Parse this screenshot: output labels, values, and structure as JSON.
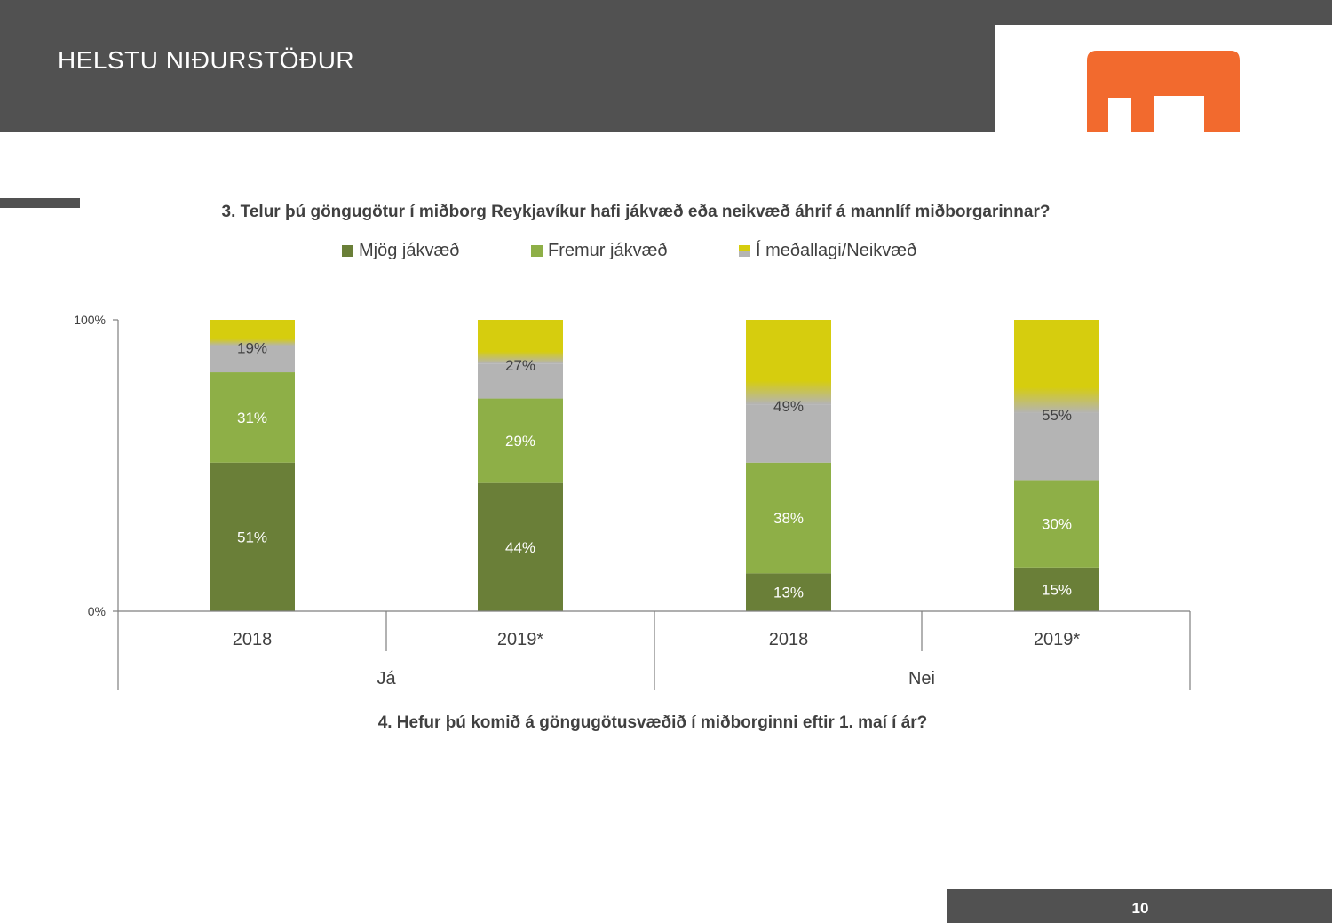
{
  "header": {
    "title": "HELSTU NIÐURSTÖÐUR"
  },
  "colors": {
    "header_bg": "#515151",
    "logo_orange": "#F26A2E",
    "mjog": "#6A7F38",
    "fremur": "#8EAF47",
    "midlungs": "#B4B4B4",
    "neikvaed": "#D6CD0E",
    "axis": "#7F7F7F",
    "text": "#404040"
  },
  "chart_data": {
    "type": "bar",
    "stacked": true,
    "title": "3. Telur þú göngugötur í miðborg Reykjavíkur hafi jákvæð eða neikvæð áhrif á mannlíf miðborgarinnar?",
    "legend": [
      "Mjög jákvæð",
      "Fremur jákvæð",
      "Í meðallagi/Neikvæð"
    ],
    "legend_position": "top",
    "categories": [
      "2018",
      "2019*",
      "2018",
      "2019*"
    ],
    "groups": [
      {
        "label": "Já",
        "categories": [
          "2018",
          "2019*"
        ]
      },
      {
        "label": "Nei",
        "categories": [
          "2018",
          "2019*"
        ]
      }
    ],
    "series": [
      {
        "name": "Mjög jákvæð",
        "values": [
          51,
          44,
          13,
          15
        ],
        "labels": [
          "51%",
          "44%",
          "13%",
          "15%"
        ]
      },
      {
        "name": "Fremur jákvæð",
        "values": [
          31,
          29,
          38,
          30
        ],
        "labels": [
          "31%",
          "29%",
          "38%",
          "30%"
        ]
      },
      {
        "name": "Í meðallagi",
        "values": [
          9,
          12,
          20,
          23
        ]
      },
      {
        "name": "Neikvæð",
        "values": [
          9,
          15,
          29,
          32
        ]
      }
    ],
    "combined_labels": [
      "19%",
      "27%",
      "49%",
      "55%"
    ],
    "yticks": [
      "0%",
      "100%"
    ],
    "ylim": [
      0,
      100
    ]
  },
  "second_question": "4. Hefur þú komið á göngugötusvæðið í miðborginni eftir 1. maí í ár?",
  "footer": {
    "page_number": "10"
  }
}
